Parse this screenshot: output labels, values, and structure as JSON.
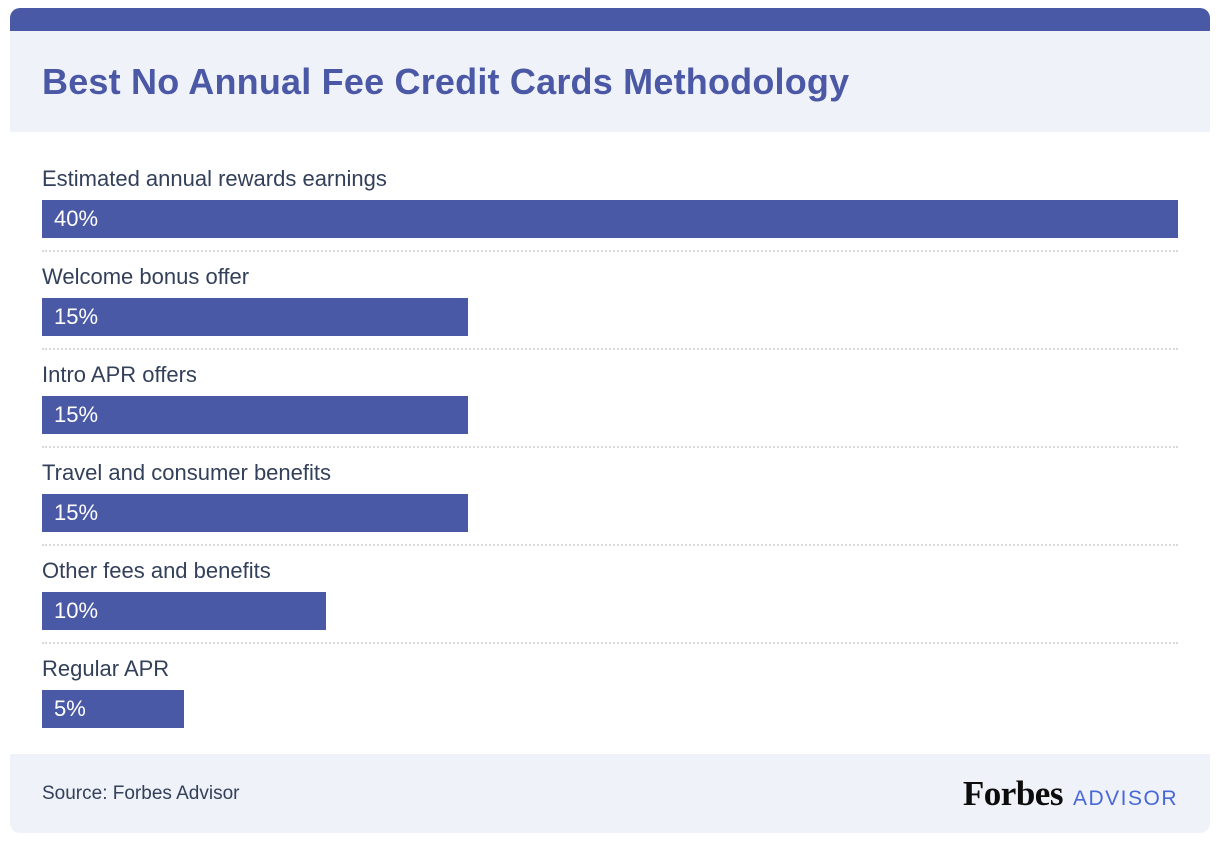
{
  "header": {
    "title": "Best No Annual Fee Credit Cards Methodology"
  },
  "chart_data": {
    "type": "bar",
    "orientation": "horizontal",
    "title": "Best No Annual Fee Credit Cards Methodology",
    "categories": [
      "Estimated annual rewards earnings",
      "Welcome bonus offer",
      "Intro APR offers",
      "Travel and consumer benefits",
      "Other fees and benefits",
      "Regular APR"
    ],
    "values": [
      40,
      15,
      15,
      15,
      10,
      5
    ],
    "value_labels": [
      "40%",
      "15%",
      "15%",
      "15%",
      "10%",
      "5%"
    ],
    "value_axis_max_shown": 40,
    "unit": "percent",
    "grid": "dotted-row-separators",
    "legend": "none",
    "bar_label_position": "inside-left"
  },
  "footer": {
    "source": "Source: Forbes Advisor",
    "brand": "Forbes",
    "brand_suffix": "ADVISOR"
  },
  "colors": {
    "accent": "#4a59a5",
    "title": "#4a58a6",
    "band": "#eff2f8",
    "ink": "#33405a",
    "advisor": "#4868d8",
    "separator": "#d9d9d9",
    "bar_text": "#ffffff"
  }
}
